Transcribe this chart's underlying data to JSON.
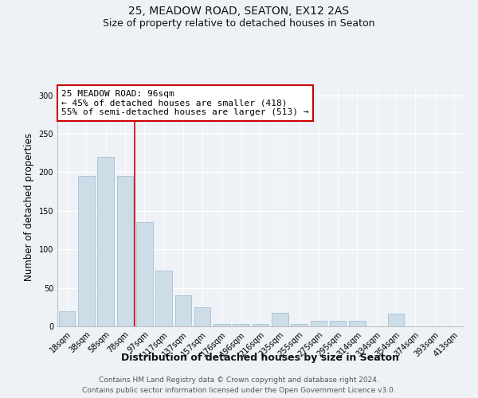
{
  "title": "25, MEADOW ROAD, SEATON, EX12 2AS",
  "subtitle": "Size of property relative to detached houses in Seaton",
  "xlabel": "Distribution of detached houses by size in Seaton",
  "ylabel": "Number of detached properties",
  "bar_labels": [
    "18sqm",
    "38sqm",
    "58sqm",
    "78sqm",
    "97sqm",
    "117sqm",
    "137sqm",
    "157sqm",
    "176sqm",
    "196sqm",
    "216sqm",
    "235sqm",
    "255sqm",
    "275sqm",
    "295sqm",
    "314sqm",
    "334sqm",
    "354sqm",
    "374sqm",
    "393sqm",
    "413sqm"
  ],
  "bar_heights": [
    20,
    195,
    220,
    195,
    135,
    72,
    40,
    25,
    3,
    3,
    3,
    18,
    3,
    7,
    7,
    7,
    0,
    17,
    0,
    0,
    0
  ],
  "bar_color": "#ccdde8",
  "bar_edge_color": "#a8c0d0",
  "vline_x_index": 4,
  "vline_color": "#cc0000",
  "annotation_line1": "25 MEADOW ROAD: 96sqm",
  "annotation_line2": "← 45% of detached houses are smaller (418)",
  "annotation_line3": "55% of semi-detached houses are larger (513) →",
  "annotation_box_color": "#ffffff",
  "annotation_box_edge_color": "#cc0000",
  "ylim": [
    0,
    310
  ],
  "yticks": [
    0,
    50,
    100,
    150,
    200,
    250,
    300
  ],
  "bg_color": "#eef2f7",
  "grid_color": "#ffffff",
  "footer_line1": "Contains HM Land Registry data © Crown copyright and database right 2024.",
  "footer_line2": "Contains public sector information licensed under the Open Government Licence v3.0.",
  "title_fontsize": 10,
  "subtitle_fontsize": 9,
  "xlabel_fontsize": 9,
  "ylabel_fontsize": 8.5,
  "tick_fontsize": 7,
  "annotation_fontsize": 8,
  "footer_fontsize": 6.5
}
